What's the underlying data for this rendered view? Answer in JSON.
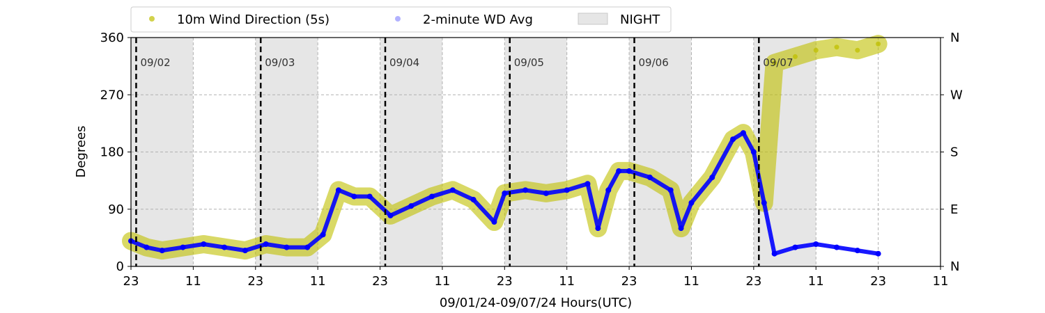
{
  "chart_data": {
    "type": "scatter",
    "xlabel": "09/01/24-09/07/24  Hours(UTC)",
    "ylabel": "Degrees",
    "ylim": [
      0,
      360
    ],
    "yticks": [
      0,
      90,
      180,
      270,
      360
    ],
    "right_ticks": [
      "N",
      "E",
      "S",
      "W",
      "N"
    ],
    "x_unit": "hours since 09/01/24 23:00 UTC",
    "xlim": [
      0,
      156
    ],
    "xtick_labels": [
      "23",
      "11",
      "23",
      "11",
      "23",
      "11",
      "23",
      "11",
      "23",
      "11",
      "23",
      "11",
      "23",
      "11"
    ],
    "grid": true,
    "legend_position": "top",
    "legend": {
      "items": [
        {
          "label": "10m Wind Direction (5s)",
          "color": "#bfbf00"
        },
        {
          "label": "2-minute WD Avg",
          "color": "#0000ff"
        },
        {
          "label": "NIGHT",
          "color": "#e6e6e6"
        }
      ]
    },
    "night_shading": [
      [
        0,
        12
      ],
      [
        24,
        36
      ],
      [
        48,
        60
      ],
      [
        72,
        84
      ],
      [
        96,
        108
      ],
      [
        120,
        132
      ]
    ],
    "day_markers": [
      {
        "x": 1,
        "label": "09/02"
      },
      {
        "x": 25,
        "label": "09/03"
      },
      {
        "x": 49,
        "label": "09/04"
      },
      {
        "x": 73,
        "label": "09/05"
      },
      {
        "x": 97,
        "label": "09/06"
      },
      {
        "x": 121,
        "label": "09/07"
      }
    ],
    "series": [
      {
        "name": "10m Wind Direction (5s)",
        "color": "#bfbf00",
        "x": [
          0,
          3,
          6,
          10,
          14,
          18,
          22,
          26,
          30,
          34,
          37,
          40,
          43,
          46,
          50,
          54,
          58,
          62,
          66,
          70,
          72,
          76,
          80,
          84,
          88,
          90,
          92,
          94,
          96,
          100,
          104,
          106,
          108,
          112,
          116,
          118,
          120,
          122,
          124,
          128,
          132,
          136,
          140,
          144
        ],
        "y": [
          40,
          30,
          25,
          30,
          35,
          30,
          25,
          35,
          30,
          30,
          50,
          120,
          110,
          110,
          80,
          95,
          110,
          120,
          105,
          70,
          115,
          120,
          115,
          120,
          130,
          60,
          120,
          150,
          150,
          140,
          120,
          60,
          100,
          140,
          200,
          210,
          180,
          100,
          320,
          330,
          340,
          345,
          340,
          350
        ]
      },
      {
        "name": "2-minute WD Avg",
        "color": "#0000ff",
        "x": [
          0,
          3,
          6,
          10,
          14,
          18,
          22,
          26,
          30,
          34,
          37,
          40,
          43,
          46,
          50,
          54,
          58,
          62,
          66,
          70,
          72,
          76,
          80,
          84,
          88,
          90,
          92,
          94,
          96,
          100,
          104,
          106,
          108,
          112,
          116,
          118,
          120,
          122,
          124,
          128,
          132,
          136,
          140,
          144
        ],
        "y": [
          40,
          30,
          25,
          30,
          35,
          30,
          25,
          35,
          30,
          30,
          50,
          120,
          110,
          110,
          80,
          95,
          110,
          120,
          105,
          70,
          115,
          120,
          115,
          120,
          130,
          60,
          120,
          150,
          150,
          140,
          120,
          60,
          100,
          140,
          200,
          210,
          180,
          100,
          20,
          30,
          35,
          30,
          25,
          20
        ]
      }
    ]
  }
}
